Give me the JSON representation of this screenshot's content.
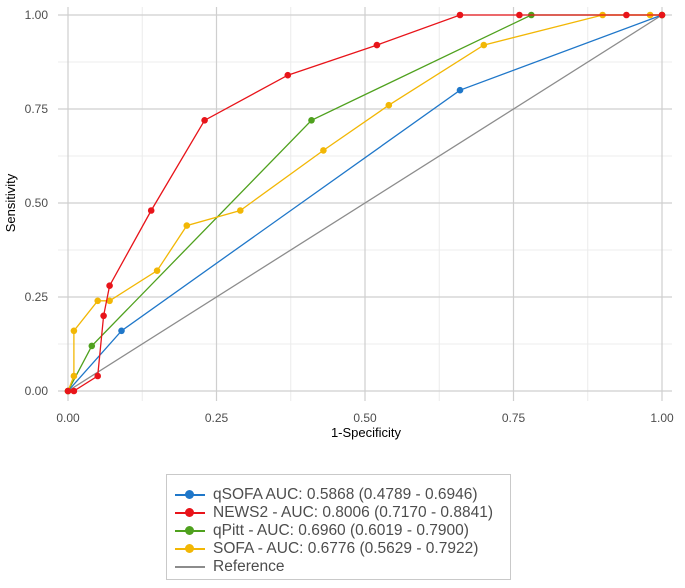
{
  "chart_data": {
    "type": "line",
    "title": "",
    "xlabel": "1-Specificity",
    "ylabel": "Sensitivity",
    "xlim": [
      0,
      1
    ],
    "ylim": [
      0,
      1
    ],
    "xticks": [
      0,
      0.25,
      0.5,
      0.75,
      1
    ],
    "yticks": [
      0,
      0.25,
      0.5,
      0.75,
      1
    ],
    "xtick_labels": [
      "0.00",
      "0.25",
      "0.50",
      "0.75",
      "1.00"
    ],
    "ytick_labels": [
      "0.00",
      "0.25",
      "0.50",
      "0.75",
      "1.00"
    ],
    "grid": true,
    "legend_position": "bottom",
    "series": [
      {
        "name": "qSOFA AUC: 0.5868 (0.4789 - 0.6946)",
        "color": "#1f77c9",
        "markers": true,
        "x": [
          0,
          0.09,
          0.66,
          1.0
        ],
        "y": [
          0,
          0.16,
          0.8,
          1.0
        ]
      },
      {
        "name": "NEWS2 - AUC: 0.8006 (0.7170 - 0.8841)",
        "color": "#e8141a",
        "markers": true,
        "x": [
          0,
          0.01,
          0.05,
          0.06,
          0.07,
          0.14,
          0.23,
          0.37,
          0.52,
          0.66,
          0.76,
          0.94,
          1.0
        ],
        "y": [
          0,
          0,
          0.04,
          0.2,
          0.28,
          0.48,
          0.72,
          0.84,
          0.92,
          1.0,
          1.0,
          1.0,
          1.0
        ]
      },
      {
        "name": "qPitt - AUC: 0.6960 (0.6019 - 0.7900)",
        "color": "#4fa11e",
        "markers": true,
        "x": [
          0,
          0.04,
          0.41,
          0.78,
          1.0
        ],
        "y": [
          0,
          0.12,
          0.72,
          1.0,
          1.0
        ]
      },
      {
        "name": "SOFA - AUC: 0.6776 (0.5629 - 0.7922)",
        "color": "#f2b705",
        "markers": true,
        "x": [
          0,
          0.01,
          0.01,
          0.05,
          0.07,
          0.15,
          0.2,
          0.29,
          0.43,
          0.54,
          0.7,
          0.9,
          0.98,
          1.0
        ],
        "y": [
          0,
          0.04,
          0.16,
          0.24,
          0.24,
          0.32,
          0.44,
          0.48,
          0.64,
          0.76,
          0.92,
          1.0,
          1.0,
          1.0
        ]
      },
      {
        "name": "Reference",
        "color": "#8c8c8c",
        "markers": false,
        "x": [
          0,
          1
        ],
        "y": [
          0,
          1
        ]
      }
    ]
  }
}
